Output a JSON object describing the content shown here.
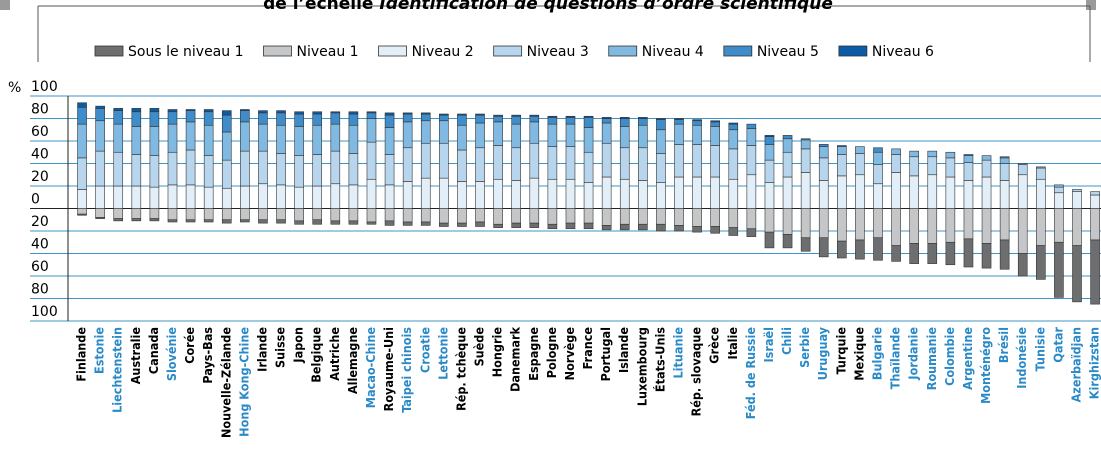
{
  "chart_data": {
    "type": "diverging_stacked_bar",
    "title": "de l’échelle ",
    "title_italic": "Identification de questions d’ordre scientifique",
    "y_unit": "%",
    "ylim": [
      -100,
      100
    ],
    "yticks": [
      100,
      80,
      60,
      40,
      20,
      0,
      {
        "value": -20,
        "label": "20"
      },
      {
        "value": -40,
        "label": "40"
      },
      {
        "value": -60,
        "label": "60"
      },
      {
        "value": -80,
        "label": "80"
      },
      {
        "value": -100,
        "label": "100"
      }
    ],
    "grid": true,
    "legend": "top",
    "categories": [
      "Finlande",
      "Estonie",
      "Liechtenstein",
      "Australie",
      "Canada",
      "Slovénie",
      "Corée",
      "Pays-Bas",
      "Nouvelle-Zélande",
      "Hong Kong-Chine",
      "Irlande",
      "Suisse",
      "Japon",
      "Belgique",
      "Autriche",
      "Allemagne",
      "Macao-Chine",
      "Royaume-Uni",
      "Taipei chinois",
      "Croatie",
      "Lettonie",
      "Rép. tchèque",
      "Suède",
      "Hongrie",
      "Danemark",
      "Espagne",
      "Pologne",
      "Norvège",
      "France",
      "Portugal",
      "Islande",
      "Luxembourg",
      "États-Unis",
      "Lituanie",
      "Rép. slovaque",
      "Grèce",
      "Italie",
      "Féd. de Russie",
      "Israël",
      "Chili",
      "Serbie",
      "Uruguay",
      "Turquie",
      "Mexique",
      "Bulgarie",
      "Thaïlande",
      "Jordanie",
      "Roumanie",
      "Colombie",
      "Argentine",
      "Monténégro",
      "Brésil",
      "Indonésie",
      "Tunisie",
      "Qatar",
      "Azerbaïdjan",
      "Kirghizstan"
    ],
    "category_colors": [
      "#000000",
      "#2a8ac8",
      "#2a8ac8",
      "#000000",
      "#000000",
      "#2a8ac8",
      "#000000",
      "#000000",
      "#000000",
      "#2a8ac8",
      "#000000",
      "#000000",
      "#000000",
      "#000000",
      "#000000",
      "#000000",
      "#2a8ac8",
      "#000000",
      "#2a8ac8",
      "#2a8ac8",
      "#2a8ac8",
      "#000000",
      "#000000",
      "#000000",
      "#000000",
      "#000000",
      "#000000",
      "#000000",
      "#000000",
      "#000000",
      "#000000",
      "#000000",
      "#000000",
      "#2a8ac8",
      "#000000",
      "#000000",
      "#000000",
      "#2a8ac8",
      "#2a8ac8",
      "#2a8ac8",
      "#2a8ac8",
      "#2a8ac8",
      "#000000",
      "#000000",
      "#2a8ac8",
      "#2a8ac8",
      "#2a8ac8",
      "#2a8ac8",
      "#2a8ac8",
      "#2a8ac8",
      "#2a8ac8",
      "#2a8ac8",
      "#2a8ac8",
      "#2a8ac8",
      "#2a8ac8",
      "#2a8ac8",
      "#2a8ac8"
    ],
    "series": [
      {
        "name": "Sous le niveau 1",
        "color": "#6d6e70",
        "side": "below",
        "values": [
          1,
          1,
          2,
          2,
          2,
          2,
          2,
          2,
          3,
          2,
          3,
          3,
          3,
          4,
          3,
          3,
          2,
          4,
          3,
          3,
          3,
          3,
          4,
          3,
          4,
          4,
          4,
          5,
          5,
          4,
          5,
          5,
          6,
          5,
          5,
          6,
          7,
          7,
          14,
          12,
          12,
          17,
          15,
          17,
          20,
          14,
          18,
          18,
          20,
          25,
          22,
          26,
          20,
          30,
          49,
          50,
          57
        ]
      },
      {
        "name": "Niveau 1",
        "color": "#c4c6c8",
        "side": "below",
        "values": [
          5,
          8,
          9,
          9,
          9,
          10,
          10,
          10,
          10,
          10,
          10,
          10,
          11,
          10,
          11,
          11,
          12,
          11,
          12,
          12,
          13,
          13,
          12,
          14,
          13,
          13,
          14,
          13,
          13,
          15,
          14,
          14,
          14,
          15,
          16,
          16,
          17,
          18,
          21,
          23,
          26,
          26,
          29,
          28,
          26,
          33,
          31,
          31,
          30,
          27,
          31,
          28,
          40,
          33,
          30,
          33,
          28
        ]
      },
      {
        "name": "Niveau 2",
        "color": "#e2eef8",
        "side": "above",
        "values": [
          17,
          20,
          20,
          20,
          19,
          21,
          21,
          19,
          18,
          20,
          22,
          21,
          19,
          20,
          22,
          21,
          26,
          21,
          24,
          27,
          27,
          24,
          24,
          26,
          25,
          27,
          26,
          26,
          23,
          28,
          26,
          25,
          23,
          28,
          28,
          28,
          26,
          30,
          23,
          28,
          32,
          25,
          29,
          30,
          22,
          32,
          29,
          30,
          28,
          25,
          28,
          25,
          30,
          26,
          14,
          15,
          12
        ]
      },
      {
        "name": "Niveau 3",
        "color": "#b7d6ee",
        "side": "above",
        "values": [
          28,
          31,
          30,
          28,
          28,
          29,
          31,
          28,
          25,
          31,
          29,
          28,
          28,
          28,
          29,
          28,
          33,
          27,
          30,
          31,
          31,
          28,
          30,
          30,
          29,
          31,
          29,
          29,
          27,
          30,
          28,
          29,
          26,
          29,
          29,
          28,
          27,
          26,
          20,
          22,
          21,
          20,
          19,
          19,
          17,
          16,
          17,
          16,
          17,
          16,
          15,
          15,
          9,
          10,
          5,
          2,
          3
        ]
      },
      {
        "name": "Niveau 4",
        "color": "#80b9e2",
        "side": "above",
        "values": [
          30,
          27,
          25,
          25,
          26,
          25,
          25,
          27,
          25,
          26,
          24,
          25,
          26,
          26,
          24,
          25,
          21,
          24,
          23,
          20,
          20,
          22,
          22,
          21,
          21,
          19,
          20,
          20,
          22,
          18,
          19,
          20,
          21,
          18,
          17,
          17,
          17,
          15,
          14,
          12,
          8,
          10,
          7,
          6,
          11,
          5,
          5,
          5,
          5,
          6,
          4,
          5,
          1,
          1,
          2,
          0,
          0
        ]
      },
      {
        "name": "Niveau 5",
        "color": "#3e8cc9",
        "side": "above",
        "values": [
          15,
          11,
          12,
          13,
          13,
          11,
          10,
          12,
          15,
          10,
          10,
          11,
          11,
          10,
          10,
          10,
          5,
          11,
          7,
          6,
          5,
          9,
          7,
          5,
          7,
          5,
          6,
          6,
          9,
          4,
          7,
          6,
          9,
          4,
          4,
          4,
          5,
          4,
          7,
          3,
          1,
          2,
          1,
          0,
          4,
          0,
          0,
          0,
          0,
          1,
          0,
          1,
          0,
          0,
          0,
          0,
          0
        ]
      },
      {
        "name": "Niveau 6",
        "color": "#0a5ca6",
        "side": "above",
        "values": [
          4,
          2,
          2,
          3,
          3,
          2,
          1,
          2,
          4,
          1,
          2,
          2,
          2,
          2,
          1,
          2,
          1,
          2,
          1,
          1,
          1,
          1,
          1,
          1,
          1,
          1,
          1,
          1,
          1,
          1,
          1,
          1,
          1,
          1,
          1,
          1,
          1,
          0,
          1,
          0,
          0,
          0,
          0,
          0,
          0,
          0,
          0,
          0,
          0,
          0,
          0,
          0,
          0,
          0,
          0,
          0,
          0
        ]
      }
    ]
  }
}
